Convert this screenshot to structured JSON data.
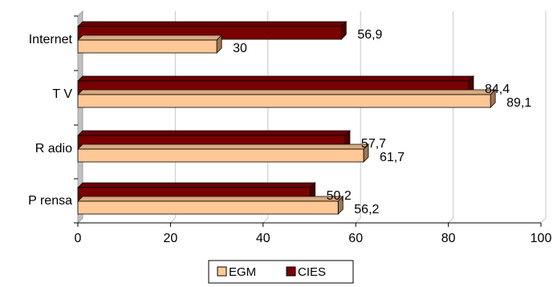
{
  "chart_data": {
    "type": "bar",
    "orientation": "horizontal",
    "categories": [
      "Internet",
      "T V",
      "R adio",
      "P rensa"
    ],
    "series": [
      {
        "name": "CIES",
        "values": [
          56.9,
          84.4,
          57.7,
          50.2
        ],
        "labels": [
          "56,9",
          "84,4",
          "57,7",
          "50,2"
        ],
        "color": "#7a0000"
      },
      {
        "name": "EGM",
        "values": [
          30,
          89.1,
          61.7,
          56.2
        ],
        "labels": [
          "30",
          "89,1",
          "61,7",
          "56,2"
        ],
        "color": "#ffc896"
      }
    ],
    "xlim": [
      0,
      100
    ],
    "xticks": [
      0,
      20,
      40,
      60,
      80,
      100
    ],
    "grid": true,
    "legend": {
      "position": "bottom",
      "entries": [
        {
          "name": "EGM",
          "color": "#ffc896"
        },
        {
          "name": "CIES",
          "color": "#7a0000"
        }
      ]
    },
    "style": "3d-bars"
  }
}
